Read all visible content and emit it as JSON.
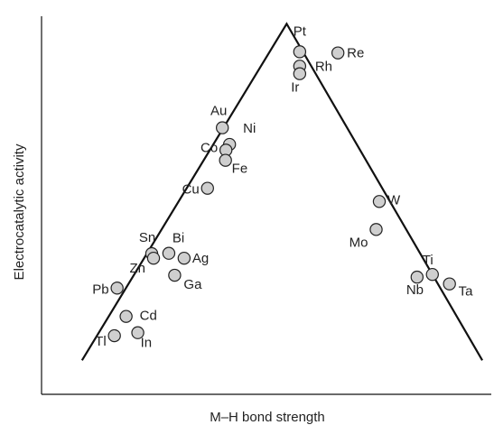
{
  "chart_data": {
    "type": "scatter",
    "xlabel": "M–H bond strength",
    "ylabel": "Electrocatalytic activity",
    "grid": false,
    "axes_tick_labels": false,
    "trend": "volcano",
    "trend_points": [
      {
        "x": 0.09,
        "y": 0.09
      },
      {
        "x": 0.545,
        "y": 0.98
      },
      {
        "x": 0.98,
        "y": 0.09
      }
    ],
    "points": [
      {
        "label": "Pt",
        "x": 0.574,
        "y": 0.906
      },
      {
        "label": "Re",
        "x": 0.659,
        "y": 0.903
      },
      {
        "label": "Rh",
        "x": 0.574,
        "y": 0.868
      },
      {
        "label": "Ir",
        "x": 0.574,
        "y": 0.848
      },
      {
        "label": "Au",
        "x": 0.402,
        "y": 0.705
      },
      {
        "label": "Ni",
        "x": 0.418,
        "y": 0.661
      },
      {
        "label": "Co",
        "x": 0.41,
        "y": 0.646
      },
      {
        "label": "Fe",
        "x": 0.409,
        "y": 0.619
      },
      {
        "label": "Cu",
        "x": 0.369,
        "y": 0.545
      },
      {
        "label": "W",
        "x": 0.751,
        "y": 0.51
      },
      {
        "label": "Mo",
        "x": 0.744,
        "y": 0.436
      },
      {
        "label": "Sn",
        "x": 0.245,
        "y": 0.372
      },
      {
        "label": "Bi",
        "x": 0.283,
        "y": 0.373
      },
      {
        "label": "Ag",
        "x": 0.317,
        "y": 0.36
      },
      {
        "label": "Zn",
        "x": 0.249,
        "y": 0.36
      },
      {
        "label": "Ga",
        "x": 0.296,
        "y": 0.315
      },
      {
        "label": "Ti",
        "x": 0.869,
        "y": 0.317
      },
      {
        "label": "Nb",
        "x": 0.835,
        "y": 0.31
      },
      {
        "label": "Ta",
        "x": 0.907,
        "y": 0.292
      },
      {
        "label": "Pb",
        "x": 0.168,
        "y": 0.281
      },
      {
        "label": "Cd",
        "x": 0.188,
        "y": 0.206
      },
      {
        "label": "Tl",
        "x": 0.162,
        "y": 0.155
      },
      {
        "label": "In",
        "x": 0.214,
        "y": 0.163
      }
    ],
    "xlim": [
      0,
      1
    ],
    "ylim": [
      0,
      1
    ]
  }
}
